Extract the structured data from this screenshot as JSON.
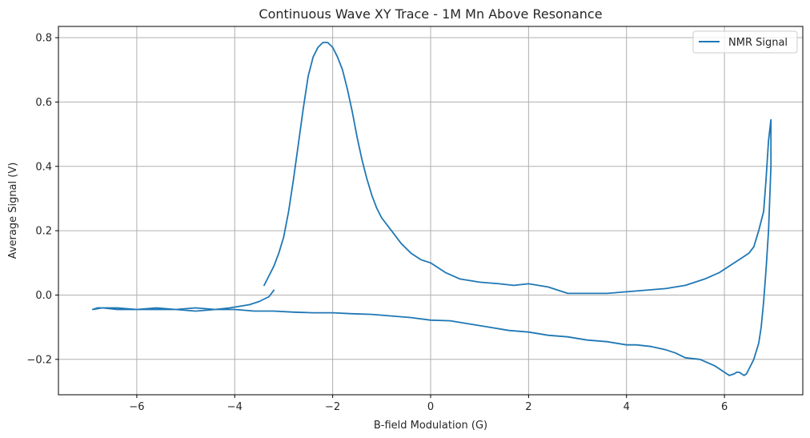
{
  "chart_data": {
    "type": "line",
    "title": "Continuous Wave XY Trace - 1M Mn Above Resonance",
    "xlabel": "B-field Modulation (G)",
    "ylabel": "Average Signal (V)",
    "xlim": [
      -7.6,
      7.6
    ],
    "ylim": [
      -0.31,
      0.835
    ],
    "xticks": [
      -6,
      -4,
      -2,
      0,
      2,
      4,
      6
    ],
    "xtick_labels": [
      "−6",
      "−4",
      "−2",
      "0",
      "2",
      "4",
      "6"
    ],
    "yticks": [
      -0.2,
      0.0,
      0.2,
      0.4,
      0.6,
      0.8
    ],
    "ytick_labels": [
      "−0.2",
      "0.0",
      "0.2",
      "0.4",
      "0.6",
      "0.8"
    ],
    "grid": true,
    "legend_position": "top-right",
    "series": [
      {
        "name": "NMR Signal",
        "color": "#1f77b4",
        "x": [
          -3.4,
          -3.3,
          -3.2,
          -3.1,
          -3.0,
          -2.9,
          -2.8,
          -2.7,
          -2.6,
          -2.5,
          -2.4,
          -2.3,
          -2.2,
          -2.1,
          -2.0,
          -1.9,
          -1.8,
          -1.7,
          -1.6,
          -1.5,
          -1.4,
          -1.3,
          -1.2,
          -1.1,
          -1.0,
          -0.8,
          -0.6,
          -0.4,
          -0.2,
          0.0,
          0.3,
          0.6,
          1.0,
          1.4,
          1.7,
          2.0,
          2.4,
          2.8,
          3.2,
          3.6,
          4.0,
          4.4,
          4.8,
          5.2,
          5.6,
          5.9,
          6.1,
          6.3,
          6.5,
          6.6,
          6.7,
          6.8,
          6.85,
          6.9,
          6.95,
          6.95,
          6.9,
          6.85,
          6.8,
          6.75,
          6.7,
          6.6,
          6.5,
          6.45,
          6.4,
          6.35,
          6.3,
          6.25,
          6.2,
          6.1,
          6.0,
          5.8,
          5.5,
          5.2,
          5.0,
          4.8,
          4.5,
          4.2,
          4.0,
          3.6,
          3.2,
          2.8,
          2.4,
          2.0,
          1.6,
          1.2,
          0.8,
          0.4,
          0.0,
          -0.4,
          -0.8,
          -1.2,
          -1.6,
          -2.0,
          -2.4,
          -2.8,
          -3.2,
          -3.6,
          -4.0,
          -4.4,
          -4.8,
          -5.2,
          -5.6,
          -6.0,
          -6.4,
          -6.8,
          -6.9,
          -6.7,
          -6.4,
          -6.0,
          -5.6,
          -5.2,
          -4.8,
          -4.4,
          -4.1,
          -3.9,
          -3.7,
          -3.5,
          -3.3,
          -3.2
        ],
        "y": [
          0.03,
          0.06,
          0.09,
          0.13,
          0.18,
          0.26,
          0.36,
          0.47,
          0.58,
          0.68,
          0.74,
          0.77,
          0.785,
          0.785,
          0.77,
          0.74,
          0.7,
          0.64,
          0.57,
          0.49,
          0.42,
          0.36,
          0.31,
          0.27,
          0.24,
          0.2,
          0.16,
          0.13,
          0.11,
          0.1,
          0.07,
          0.05,
          0.04,
          0.035,
          0.03,
          0.035,
          0.025,
          0.005,
          0.005,
          0.005,
          0.01,
          0.015,
          0.02,
          0.03,
          0.05,
          0.07,
          0.09,
          0.11,
          0.13,
          0.15,
          0.2,
          0.26,
          0.36,
          0.48,
          0.545,
          0.4,
          0.2,
          0.08,
          -0.02,
          -0.1,
          -0.15,
          -0.2,
          -0.23,
          -0.245,
          -0.25,
          -0.245,
          -0.24,
          -0.24,
          -0.245,
          -0.25,
          -0.24,
          -0.22,
          -0.2,
          -0.195,
          -0.18,
          -0.17,
          -0.16,
          -0.155,
          -0.155,
          -0.145,
          -0.14,
          -0.13,
          -0.125,
          -0.115,
          -0.11,
          -0.1,
          -0.09,
          -0.08,
          -0.078,
          -0.07,
          -0.065,
          -0.06,
          -0.058,
          -0.055,
          -0.055,
          -0.053,
          -0.05,
          -0.05,
          -0.045,
          -0.045,
          -0.05,
          -0.045,
          -0.045,
          -0.045,
          -0.04,
          -0.04,
          -0.045,
          -0.04,
          -0.045,
          -0.045,
          -0.04,
          -0.045,
          -0.04,
          -0.045,
          -0.04,
          -0.035,
          -0.03,
          -0.02,
          -0.005,
          0.015
        ]
      }
    ]
  }
}
